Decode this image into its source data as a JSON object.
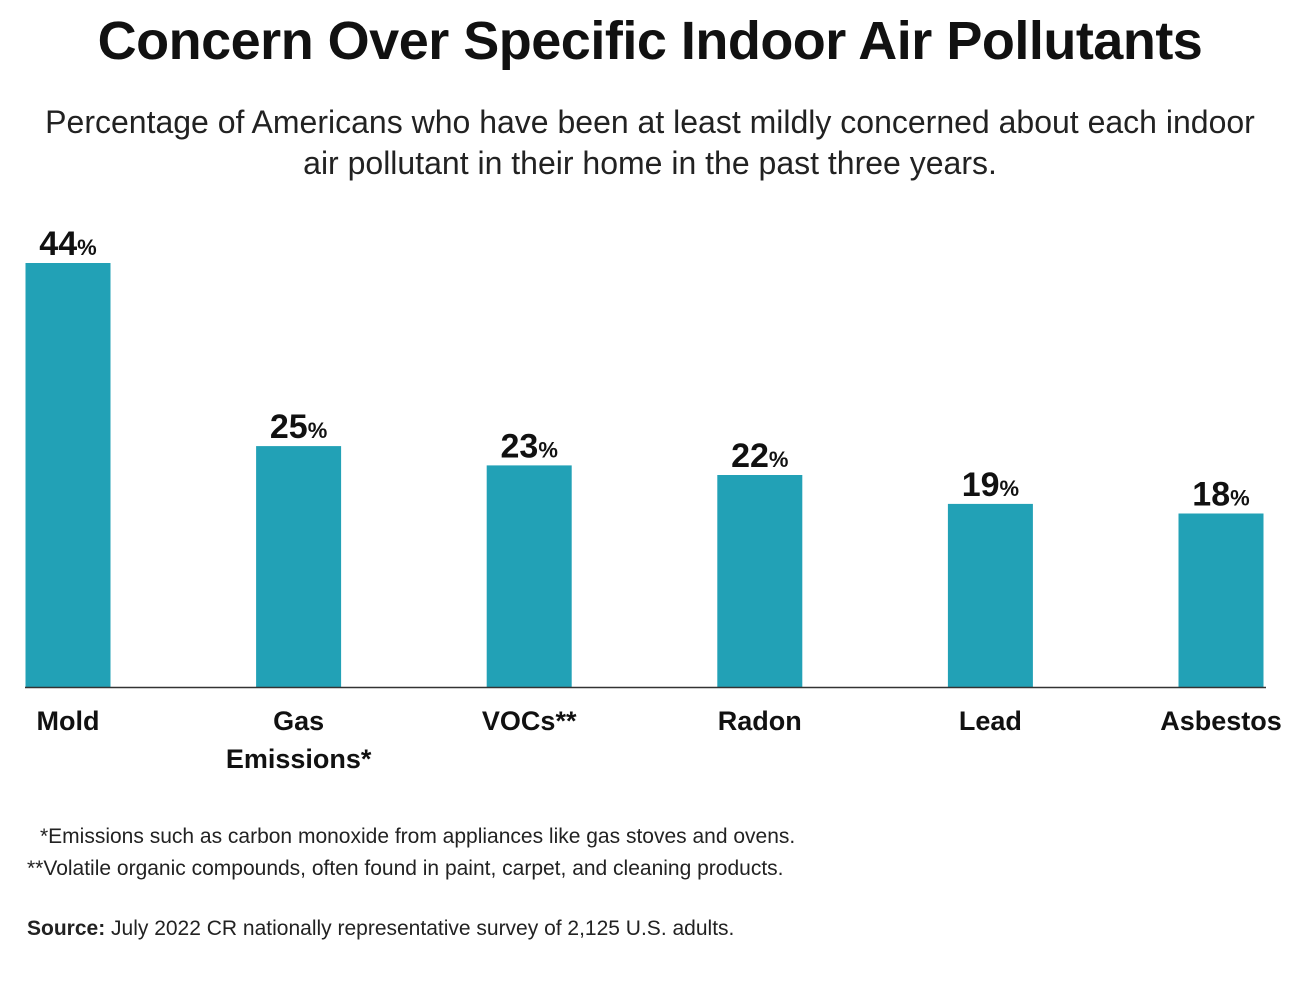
{
  "title": "Concern Over Specific Indoor Air Pollutants",
  "subtitle": "Percentage of Americans who have been at least mildly concerned about each indoor air pollutant in their home in the past three years.",
  "colors": {
    "bar": "#22a1b6",
    "axis": "#333333",
    "text": "#111111"
  },
  "chart_data": {
    "type": "bar",
    "title": "Concern Over Specific Indoor Air Pollutants",
    "xlabel": "",
    "ylabel": "",
    "ylim": [
      0,
      44
    ],
    "grid": false,
    "legend": "none",
    "value_suffix": "%",
    "categories": [
      [
        "Mold"
      ],
      [
        "Gas",
        "Emissions*"
      ],
      [
        "VOCs**"
      ],
      [
        "Radon"
      ],
      [
        "Lead"
      ],
      [
        "Asbestos"
      ]
    ],
    "values": [
      44,
      25,
      23,
      22,
      19,
      18
    ]
  },
  "footnotes": {
    "gas": "*Emissions such as carbon monoxide from appliances like gas stoves and ovens.",
    "vocs": "**Volatile organic compounds, often found in paint, carpet, and cleaning products."
  },
  "source": {
    "label": "Source:",
    "text": " July 2022 CR nationally representative survey of 2,125 U.S. adults."
  }
}
